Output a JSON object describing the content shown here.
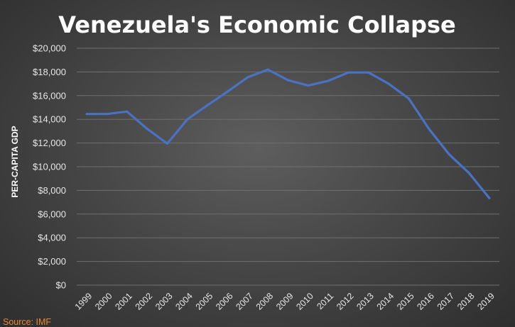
{
  "chart_data": {
    "type": "line",
    "title": "Venezuela's Economic Collapse",
    "xlabel": "",
    "ylabel": "PER-CAPITA GDP",
    "ylim": [
      0,
      20000
    ],
    "y_ticks": [
      "$0",
      "$2,000",
      "$4,000",
      "$6,000",
      "$8,000",
      "$10,000",
      "$12,000",
      "$14,000",
      "$16,000",
      "$18,000",
      "$20,000"
    ],
    "categories": [
      "1999",
      "2000",
      "2001",
      "2002",
      "2003",
      "2004",
      "2005",
      "2006",
      "2007",
      "2008",
      "2009",
      "2010",
      "2011",
      "2012",
      "2013",
      "2014",
      "2015",
      "2016",
      "2017",
      "2018",
      "2019"
    ],
    "series": [
      {
        "values": [
          14450,
          14450,
          14650,
          13200,
          11950,
          14000,
          15200,
          16350,
          17550,
          18200,
          17300,
          16850,
          17250,
          17950,
          17950,
          17000,
          15750,
          13200,
          11050,
          9450,
          7350
        ]
      }
    ],
    "grid": true,
    "legend": "none",
    "line_color": "#4a72c4",
    "source": "Source: IMF"
  }
}
